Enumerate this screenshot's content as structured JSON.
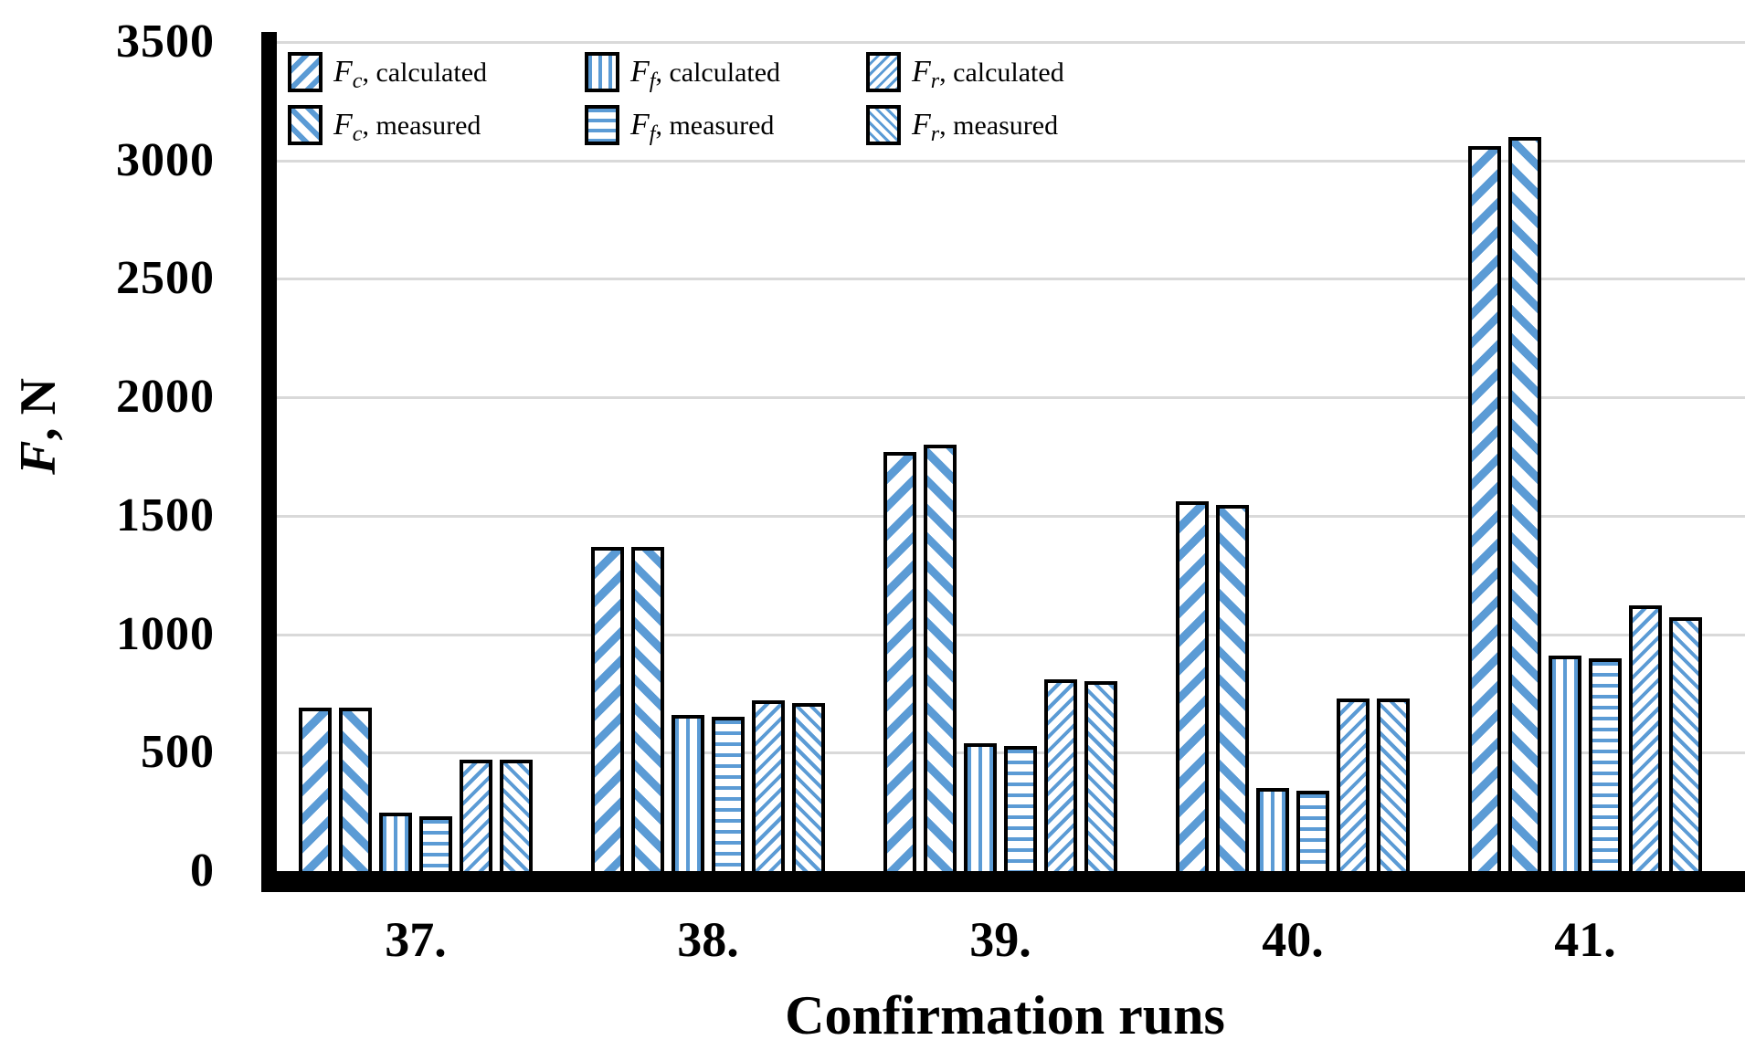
{
  "chart_data": {
    "type": "bar",
    "title": "",
    "xlabel": "Confirmation runs",
    "ylabel": "F, N",
    "ylabel_parts": {
      "f": "F",
      "rest": ", N"
    },
    "categories": [
      "37.",
      "38.",
      "39.",
      "40.",
      "41."
    ],
    "series": [
      {
        "name": "Fc, calculated",
        "f": "F",
        "sub": "c",
        "rest": ", calculated",
        "pattern": "fc-calc",
        "hatch": "wide diagonal /",
        "values": [
          690,
          1370,
          1770,
          1560,
          3060
        ]
      },
      {
        "name": "Fc, measured",
        "f": "F",
        "sub": "c",
        "rest": ", measured",
        "pattern": "fc-meas",
        "hatch": "wide diagonal \\",
        "values": [
          690,
          1370,
          1800,
          1545,
          3100
        ]
      },
      {
        "name": "Ff, calculated",
        "f": "F",
        "sub": "f",
        "rest": ", calculated",
        "pattern": "ff-calc",
        "hatch": "vertical stripes",
        "values": [
          245,
          660,
          540,
          350,
          910
        ]
      },
      {
        "name": "Ff, measured",
        "f": "F",
        "sub": "f",
        "rest": ", measured",
        "pattern": "ff-meas",
        "hatch": "horizontal stripes",
        "values": [
          230,
          650,
          530,
          340,
          900
        ]
      },
      {
        "name": "Fr, calculated",
        "f": "F",
        "sub": "r",
        "rest": ", calculated",
        "pattern": "fr-calc",
        "hatch": "fine diagonal /",
        "values": [
          470,
          720,
          810,
          730,
          1120
        ]
      },
      {
        "name": "Fr, measured",
        "f": "F",
        "sub": "r",
        "rest": ", measured",
        "pattern": "fr-meas",
        "hatch": "fine diagonal \\",
        "values": [
          470,
          710,
          800,
          730,
          1070
        ]
      }
    ],
    "ylim": [
      0,
      3500
    ],
    "yticks": [
      0,
      500,
      1000,
      1500,
      2000,
      2500,
      3000,
      3500
    ],
    "grid": true,
    "legend_position": "inside top-left, 2 rows x 3 columns",
    "legend_rows": [
      [
        "Fc, calculated",
        "Ff, calculated",
        "Fr, calculated"
      ],
      [
        "Fc, measured",
        "Ff, measured",
        "Fr, measured"
      ]
    ],
    "colors": {
      "hatch_blue": "#5B9BD5",
      "bar_outline": "#000000",
      "gridline": "#D9D9D9",
      "axis": "#000000",
      "text": "#000000",
      "background": "#FFFFFF"
    }
  }
}
